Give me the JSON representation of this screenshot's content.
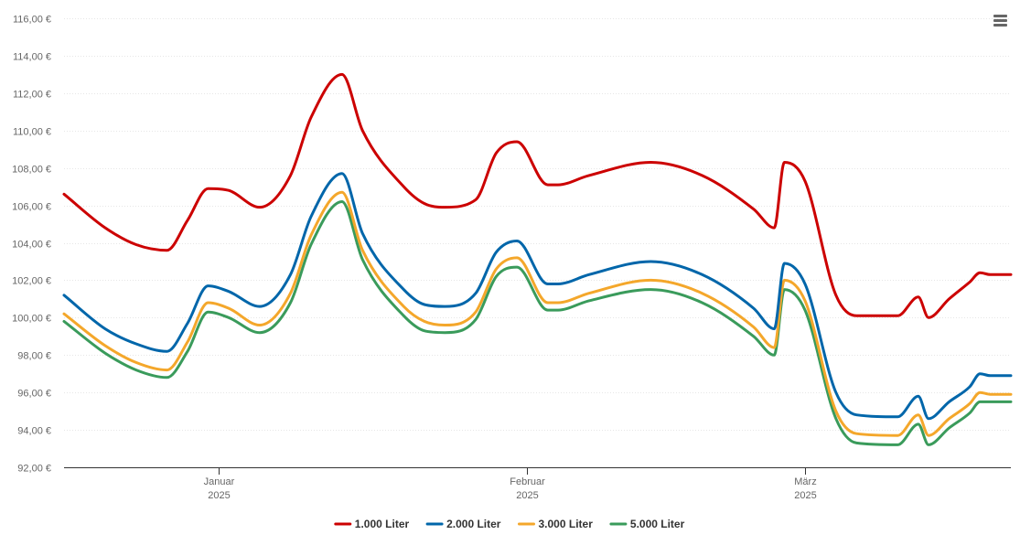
{
  "menu": {
    "icon": "hamburger-menu-icon"
  },
  "chart_data": {
    "type": "line",
    "ylim": [
      92,
      116
    ],
    "y_ticks": [
      92,
      94,
      96,
      98,
      100,
      102,
      104,
      106,
      108,
      110,
      112,
      114,
      116
    ],
    "y_tick_labels": [
      "92,00 €",
      "94,00 €",
      "96,00 €",
      "98,00 €",
      "100,00 €",
      "102,00 €",
      "104,00 €",
      "106,00 €",
      "108,00 €",
      "110,00 €",
      "112,00 €",
      "114,00 €",
      "116,00 €"
    ],
    "xlim": [
      "2024-12-25",
      "2025-03-27"
    ],
    "x_ticks": [
      {
        "date": "2025-01-09",
        "month": "Januar",
        "year": "2025"
      },
      {
        "date": "2025-02-08",
        "month": "Februar",
        "year": "2025"
      },
      {
        "date": "2025-03-07",
        "month": "März",
        "year": "2025"
      }
    ],
    "grid": true,
    "legend_position": "bottom-center",
    "x": [
      "2024-12-25",
      "2024-12-29",
      "2025-01-01",
      "2025-01-04",
      "2025-01-06",
      "2025-01-08",
      "2025-01-10",
      "2025-01-13",
      "2025-01-16",
      "2025-01-18",
      "2025-01-21",
      "2025-01-23",
      "2025-01-27",
      "2025-01-29",
      "2025-01-31",
      "2025-02-03",
      "2025-02-05",
      "2025-02-07",
      "2025-02-10",
      "2025-02-11",
      "2025-02-14",
      "2025-02-20",
      "2025-02-25",
      "2025-03-02",
      "2025-03-04",
      "2025-03-05",
      "2025-03-07",
      "2025-03-10",
      "2025-03-12",
      "2025-03-16",
      "2025-03-18",
      "2025-03-19",
      "2025-03-21",
      "2025-03-23",
      "2025-03-24",
      "2025-03-25",
      "2025-03-27"
    ],
    "series": [
      {
        "name": "1.000 Liter",
        "color": "#cc0000",
        "values": [
          106.6,
          104.8,
          103.9,
          103.6,
          105.2,
          106.9,
          106.8,
          105.9,
          107.6,
          110.7,
          113.0,
          110.0,
          107.0,
          106.1,
          105.9,
          106.3,
          108.8,
          109.4,
          107.1,
          107.1,
          107.6,
          108.3,
          107.6,
          105.8,
          104.8,
          108.3,
          107.3,
          101.2,
          100.1,
          100.1,
          101.1,
          100.0,
          101.0,
          101.9,
          102.4,
          102.3,
          102.3
        ]
      },
      {
        "name": "2.000 Liter",
        "color": "#0066aa",
        "values": [
          101.2,
          99.4,
          98.6,
          98.2,
          99.7,
          101.7,
          101.4,
          100.6,
          102.3,
          105.4,
          107.7,
          104.5,
          101.5,
          100.7,
          100.6,
          101.3,
          103.5,
          104.1,
          101.8,
          101.8,
          102.3,
          103.0,
          102.3,
          100.5,
          99.4,
          102.9,
          101.8,
          96.0,
          94.8,
          94.7,
          95.8,
          94.6,
          95.5,
          96.3,
          97.0,
          96.9,
          96.9
        ]
      },
      {
        "name": "3.000 Liter",
        "color": "#f4a72b",
        "values": [
          100.2,
          98.5,
          97.6,
          97.2,
          98.7,
          100.8,
          100.5,
          99.6,
          101.3,
          104.4,
          106.7,
          103.6,
          100.6,
          99.8,
          99.6,
          100.3,
          102.6,
          103.2,
          100.8,
          100.8,
          101.3,
          102.0,
          101.3,
          99.5,
          98.4,
          102.0,
          100.9,
          95.0,
          93.8,
          93.7,
          94.8,
          93.7,
          94.6,
          95.4,
          96.0,
          95.9,
          95.9
        ]
      },
      {
        "name": "5.000 Liter",
        "color": "#3a9b5b",
        "values": [
          99.8,
          98.1,
          97.2,
          96.8,
          98.2,
          100.3,
          100.0,
          99.2,
          100.8,
          103.9,
          106.2,
          103.1,
          100.1,
          99.3,
          99.2,
          99.9,
          102.2,
          102.7,
          100.4,
          100.4,
          100.9,
          101.5,
          100.8,
          99.0,
          98.0,
          101.5,
          100.4,
          94.6,
          93.3,
          93.2,
          94.3,
          93.2,
          94.1,
          94.9,
          95.5,
          95.5,
          95.5
        ]
      }
    ]
  }
}
